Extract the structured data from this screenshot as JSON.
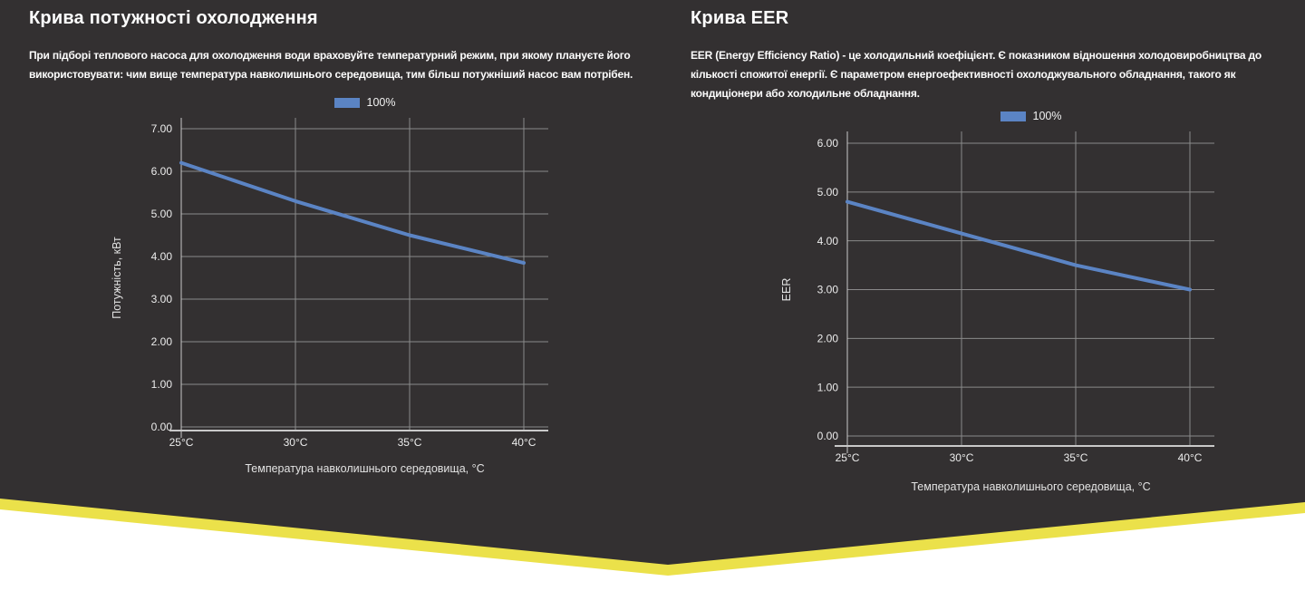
{
  "page": {
    "background_dark": "#333031",
    "accent_yellow": "#ebe14a",
    "grid_color": "#8a8a8a",
    "axis_color": "#c9c9c9",
    "line_blue": "#5b84c4"
  },
  "sections": [
    {
      "title": "Крива потужності охолодження",
      "description_lines": [
        "При підборі теплового насоса для охолодження води враховуйте температурний режим, при якому плануєте його",
        "використовувати: чим вище температура навколишнього середовища, тим більш потужніший насос вам потрібен."
      ]
    },
    {
      "title": "Крива EER",
      "description_lines": [
        "EER (Energy Efficiency Ratio) - це холодильний коефіцієнт. Є показником відношення холодовиробництва до",
        "кількості спожитої енергії. Є параметром енергоефективності охолоджувального обладнання, такого як",
        "кондиціонери або холодильне обладнання."
      ]
    }
  ],
  "chart_data": [
    {
      "type": "line",
      "title": "Крива потужності охолодження",
      "categories": [
        "25°C",
        "30°C",
        "35°C",
        "40°C"
      ],
      "series": [
        {
          "name": "100%",
          "values": [
            6.2,
            5.3,
            4.5,
            3.85
          ]
        }
      ],
      "xlabel": "Температура навколишнього середовища, °C",
      "ylabel": "Потужність, кВт",
      "ylim": [
        0,
        7
      ],
      "ytick_step": 1,
      "ytick_format": "0.00",
      "grid": true,
      "legend_position": "top",
      "line_color": "#5b84c4"
    },
    {
      "type": "line",
      "title": "Крива EER",
      "categories": [
        "25°C",
        "30°C",
        "35°C",
        "40°C"
      ],
      "series": [
        {
          "name": "100%",
          "values": [
            4.8,
            4.15,
            3.5,
            3.0
          ]
        }
      ],
      "xlabel": "Температура навколишнього середовища, °C",
      "ylabel": "EER",
      "ylim": [
        0,
        6
      ],
      "ytick_step": 1,
      "ytick_format": "0.00",
      "grid": true,
      "legend_position": "top",
      "line_color": "#5b84c4"
    }
  ]
}
